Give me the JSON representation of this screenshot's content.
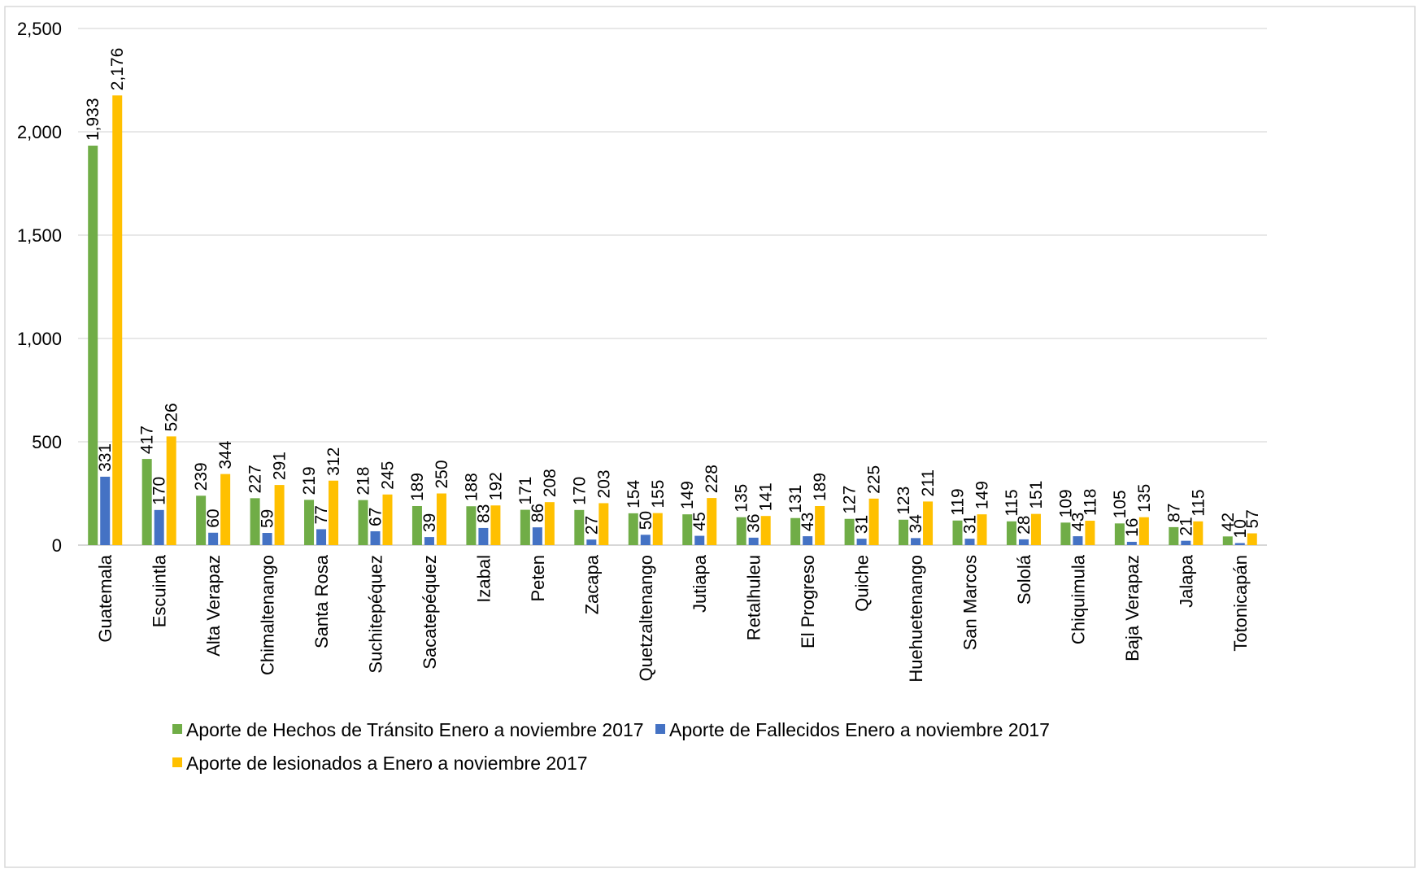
{
  "chart_data": {
    "type": "bar",
    "title": "",
    "xlabel": "",
    "ylabel": "",
    "ylim": [
      0,
      2500
    ],
    "yticks": [
      0,
      500,
      1000,
      1500,
      2000,
      2500
    ],
    "ytick_labels": [
      "0",
      "500",
      "1,000",
      "1,500",
      "2,000",
      "2,500"
    ],
    "grid": true,
    "legend_position": "bottom",
    "categories": [
      "Guatemala",
      "Escuintla",
      "Alta Verapaz",
      "Chimaltenango",
      "Santa Rosa",
      "Suchitepéquez",
      "Sacatepéquez",
      "Izabal",
      "Peten",
      "Zacapa",
      "Quetzaltenango",
      "Jutiapa",
      "Retalhuleu",
      "El Progreso",
      "Quiche",
      "Huehuetenango",
      "San Marcos",
      "Sololá",
      "Chiquimula",
      "Baja Verapaz",
      "Jalapa",
      "Totonicapán"
    ],
    "series": [
      {
        "name": "Aporte de Hechos de Tránsito Enero a noviembre 2017",
        "color": "#70AD47",
        "values": [
          1933,
          417,
          239,
          227,
          219,
          218,
          189,
          188,
          171,
          170,
          154,
          149,
          135,
          131,
          127,
          123,
          119,
          115,
          109,
          105,
          87,
          42
        ],
        "labels": [
          "1,933",
          "417",
          "239",
          "227",
          "219",
          "218",
          "189",
          "188",
          "171",
          "170",
          "154",
          "149",
          "135",
          "131",
          "127",
          "123",
          "119",
          "115",
          "109",
          "105",
          "87",
          "42"
        ]
      },
      {
        "name": "Aporte de Fallecidos  Enero a noviembre 2017",
        "color": "#4472C4",
        "values": [
          331,
          170,
          60,
          59,
          77,
          67,
          39,
          83,
          86,
          27,
          50,
          45,
          36,
          43,
          31,
          34,
          31,
          28,
          43,
          16,
          21,
          10
        ],
        "labels": [
          "331",
          "170",
          "60",
          "59",
          "77",
          "67",
          "39",
          "83",
          "86",
          "27",
          "50",
          "45",
          "36",
          "43",
          "31",
          "34",
          "31",
          "28",
          "43",
          "16",
          "21",
          "10"
        ]
      },
      {
        "name": "Aporte de lesionados a Enero a noviembre 2017",
        "color": "#FFC000",
        "values": [
          2176,
          526,
          344,
          291,
          312,
          245,
          250,
          192,
          208,
          203,
          155,
          228,
          141,
          189,
          225,
          211,
          149,
          151,
          118,
          135,
          115,
          57
        ],
        "labels": [
          "2,176",
          "526",
          "344",
          "291",
          "312",
          "245",
          "250",
          "192",
          "208",
          "203",
          "155",
          "228",
          "141",
          "189",
          "225",
          "211",
          "149",
          "151",
          "118",
          "135",
          "115",
          "57"
        ]
      }
    ]
  },
  "colors": {
    "gridline": "#D9D9D9",
    "axis": "#BFBFBF",
    "frame": "#D9D9D9"
  }
}
